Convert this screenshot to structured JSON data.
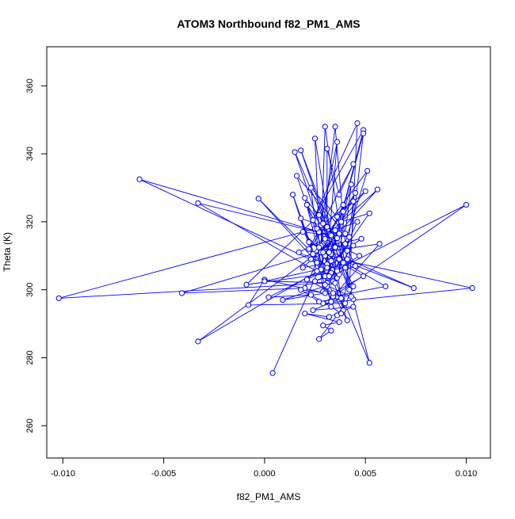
{
  "chart_data": {
    "type": "line",
    "title": "ATOM3 Northbound f82_PM1_AMS",
    "xlabel": "f82_PM1_AMS",
    "ylabel": "Theta (K)",
    "xlim": [
      -0.0108,
      0.0112
    ],
    "ylim": [
      250.5,
      371.5
    ],
    "xticks": [
      -0.01,
      -0.005,
      0.0,
      0.005,
      0.01
    ],
    "xtick_labels": [
      "-0.010",
      "-0.005",
      "0.000",
      "0.005",
      "0.010"
    ],
    "yticks": [
      260,
      280,
      300,
      320,
      340,
      360
    ],
    "ytick_labels": [
      "260",
      "280",
      "300",
      "320",
      "340",
      "360"
    ],
    "grid": false,
    "legend": "none",
    "series_color": "#0000ff",
    "series": [
      {
        "marker": "open-circle",
        "line": true,
        "points": [
          [
            0.0004,
            275.5
          ],
          [
            0.003,
            310.0
          ],
          [
            0.0052,
            278.5
          ],
          [
            0.0036,
            315.2
          ],
          [
            -0.0033,
            284.8
          ],
          [
            0.0028,
            306.0
          ],
          [
            0.0041,
            291.0
          ],
          [
            0.0025,
            318.0
          ],
          [
            -0.0102,
            297.5
          ],
          [
            0.0031,
            302.0
          ],
          [
            0.0039,
            325.0
          ],
          [
            0.002,
            300.5
          ],
          [
            -0.0041,
            299.0
          ],
          [
            0.0035,
            312.5
          ],
          [
            0.0044,
            297.2
          ],
          [
            0.0027,
            322.0
          ],
          [
            -0.0009,
            301.5
          ],
          [
            0.0033,
            305.0
          ],
          [
            0.01,
            325.0
          ],
          [
            0.0029,
            296.0
          ],
          [
            0.0103,
            300.5
          ],
          [
            0.0037,
            309.0
          ],
          [
            0.0074,
            300.5
          ],
          [
            0.0022,
            314.0
          ],
          [
            0.006,
            301.0
          ],
          [
            0.0034,
            298.0
          ],
          [
            0.0057,
            313.5
          ],
          [
            0.0028,
            311.0
          ],
          [
            0.0056,
            329.5
          ],
          [
            0.0038,
            320.0
          ],
          [
            0.0052,
            322.5
          ],
          [
            0.003,
            304.0
          ],
          [
            -0.0033,
            325.5
          ],
          [
            0.0033,
            316.0
          ],
          [
            -0.0062,
            332.5
          ],
          [
            0.0026,
            308.0
          ],
          [
            -0.0003,
            326.8
          ],
          [
            0.0036,
            303.5
          ],
          [
            0.0015,
            340.5
          ],
          [
            0.0031,
            318.5
          ],
          [
            0.0018,
            341.0
          ],
          [
            0.004,
            306.5
          ],
          [
            0.003,
            348.0
          ],
          [
            0.0028,
            313.0
          ],
          [
            0.0035,
            348.0
          ],
          [
            0.0042,
            300.0
          ],
          [
            0.0046,
            349.0
          ],
          [
            0.0024,
            320.5
          ],
          [
            0.0049,
            347.0
          ],
          [
            0.0033,
            310.5
          ],
          [
            0.0049,
            346.0
          ],
          [
            0.0039,
            294.0
          ],
          [
            0.0025,
            344.5
          ],
          [
            0.0027,
            317.0
          ],
          [
            0.0036,
            343.5
          ],
          [
            0.0031,
            307.5
          ],
          [
            0.0031,
            341.5
          ],
          [
            0.0037,
            328.0
          ],
          [
            0.0044,
            337.0
          ],
          [
            0.0022,
            312.0
          ],
          [
            0.0051,
            335.0
          ],
          [
            0.0034,
            302.5
          ],
          [
            0.0016,
            333.5
          ],
          [
            0.004,
            316.5
          ],
          [
            0.0043,
            331.0
          ],
          [
            0.0029,
            299.5
          ],
          [
            0.0023,
            330.0
          ],
          [
            0.0036,
            321.5
          ],
          [
            0.005,
            329.0
          ],
          [
            0.003,
            314.5
          ],
          [
            0.0045,
            328.5
          ],
          [
            0.0026,
            305.5
          ],
          [
            0.0014,
            328.0
          ],
          [
            0.0033,
            296.5
          ],
          [
            0.002,
            327.0
          ],
          [
            0.0041,
            311.5
          ],
          [
            0.0044,
            326.0
          ],
          [
            0.0028,
            319.0
          ],
          [
            0.0021,
            325.0
          ],
          [
            0.0037,
            304.5
          ],
          [
            0.0039,
            323.0
          ],
          [
            0.0024,
            310.5
          ],
          [
            0.0018,
            321.0
          ],
          [
            0.0035,
            317.5
          ],
          [
            0.0046,
            320.0
          ],
          [
            0.0031,
            301.0
          ],
          [
            0.0026,
            318.0
          ],
          [
            0.0042,
            315.5
          ],
          [
            0.0019,
            317.0
          ],
          [
            0.0033,
            308.5
          ],
          [
            0.0048,
            315.0
          ],
          [
            0.0027,
            312.5
          ],
          [
            0.0044,
            313.0
          ],
          [
            0.0036,
            306.0
          ],
          [
            0.0017,
            311.0
          ],
          [
            0.003,
            315.0
          ],
          [
            0.0047,
            310.0
          ],
          [
            0.0032,
            304.0
          ],
          [
            0.0023,
            309.0
          ],
          [
            0.004,
            313.5
          ],
          [
            0.0045,
            307.0
          ],
          [
            0.0025,
            302.5
          ],
          [
            0.0036,
            305.5
          ],
          [
            0.0029,
            311.0
          ],
          [
            0.0049,
            304.0
          ],
          [
            0.0034,
            299.0
          ],
          [
            0.0021,
            303.0
          ],
          [
            0.0039,
            308.0
          ],
          [
            0.003,
            301.5
          ],
          [
            0.0043,
            298.0
          ],
          [
            0.0018,
            300.0
          ],
          [
            0.0027,
            296.5
          ],
          [
            0.0038,
            297.5
          ],
          [
            0.0024,
            294.0
          ],
          [
            0.0044,
            295.0
          ],
          [
            0.0032,
            292.0
          ],
          [
            0.002,
            293.0
          ],
          [
            0.0037,
            290.5
          ],
          [
            0.0029,
            289.5
          ],
          [
            0.0033,
            288.0
          ],
          [
            0.0027,
            285.5
          ],
          [
            0.0036,
            292.5
          ],
          [
            0.004,
            296.0
          ],
          [
            -0.0008,
            295.5
          ],
          [
            0.0,
            303.0
          ],
          [
            0.003,
            299.0
          ],
          [
            0.0009,
            297.0
          ],
          [
            0.0035,
            302.0
          ],
          [
            0.0,
            302.5
          ],
          [
            0.0031,
            306.5
          ],
          [
            0.0002,
            297.8
          ],
          [
            0.0023,
            298.5
          ],
          [
            0.0033,
            295.0
          ],
          [
            0.0038,
            293.0
          ],
          [
            0.0044,
            301.0
          ],
          [
            0.0029,
            319.5
          ],
          [
            0.0032,
            311.0
          ],
          [
            0.0037,
            316.5
          ],
          [
            0.0019,
            306.5
          ],
          [
            0.0041,
            309.0
          ]
        ]
      }
    ]
  }
}
